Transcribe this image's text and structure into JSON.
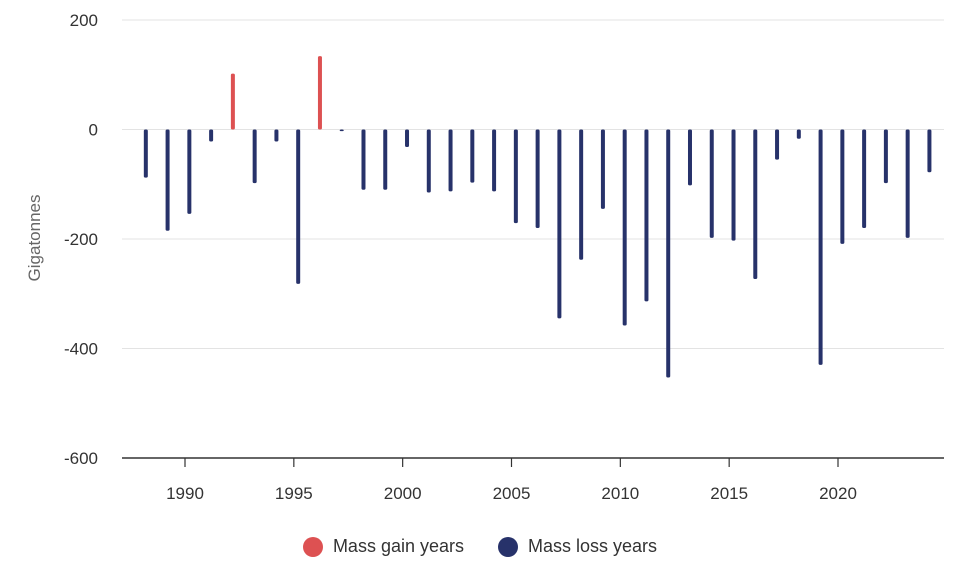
{
  "chart_data": {
    "type": "bar",
    "title": "",
    "xlabel": "",
    "ylabel": "Gigatonnes",
    "ylim": [
      -600,
      200
    ],
    "yticks": [
      200,
      0,
      -200,
      -400,
      -600
    ],
    "xticks": [
      1990,
      1995,
      2000,
      2005,
      2010,
      2015,
      2020
    ],
    "grid": true,
    "legend_position": "bottom",
    "colors": {
      "gain": "#dd5152",
      "loss": "#27326a"
    },
    "series": [
      {
        "name": "Mass gain years",
        "key": "gain"
      },
      {
        "name": "Mass loss years",
        "key": "loss"
      }
    ],
    "points": [
      {
        "x": 1988.2,
        "y": -88
      },
      {
        "x": 1989.2,
        "y": -185
      },
      {
        "x": 1990.2,
        "y": -154
      },
      {
        "x": 1991.2,
        "y": -22
      },
      {
        "x": 1992.2,
        "y": 102
      },
      {
        "x": 1993.2,
        "y": -98
      },
      {
        "x": 1994.2,
        "y": -22
      },
      {
        "x": 1995.2,
        "y": -282
      },
      {
        "x": 1996.2,
        "y": 134
      },
      {
        "x": 1997.2,
        "y": -3
      },
      {
        "x": 1998.2,
        "y": -110
      },
      {
        "x": 1999.2,
        "y": -110
      },
      {
        "x": 2000.2,
        "y": -32
      },
      {
        "x": 2001.2,
        "y": -115
      },
      {
        "x": 2002.2,
        "y": -113
      },
      {
        "x": 2003.2,
        "y": -97
      },
      {
        "x": 2004.2,
        "y": -113
      },
      {
        "x": 2005.2,
        "y": -171
      },
      {
        "x": 2006.2,
        "y": -180
      },
      {
        "x": 2007.2,
        "y": -345
      },
      {
        "x": 2008.2,
        "y": -238
      },
      {
        "x": 2009.2,
        "y": -145
      },
      {
        "x": 2010.2,
        "y": -358
      },
      {
        "x": 2011.2,
        "y": -314
      },
      {
        "x": 2012.2,
        "y": -453
      },
      {
        "x": 2013.2,
        "y": -102
      },
      {
        "x": 2014.2,
        "y": -198
      },
      {
        "x": 2015.2,
        "y": -203
      },
      {
        "x": 2016.2,
        "y": -273
      },
      {
        "x": 2017.2,
        "y": -55
      },
      {
        "x": 2018.2,
        "y": -17
      },
      {
        "x": 2019.2,
        "y": -430
      },
      {
        "x": 2020.2,
        "y": -209
      },
      {
        "x": 2021.2,
        "y": -180
      },
      {
        "x": 2022.2,
        "y": -98
      },
      {
        "x": 2023.2,
        "y": -198
      },
      {
        "x": 2024.2,
        "y": -78
      }
    ]
  }
}
